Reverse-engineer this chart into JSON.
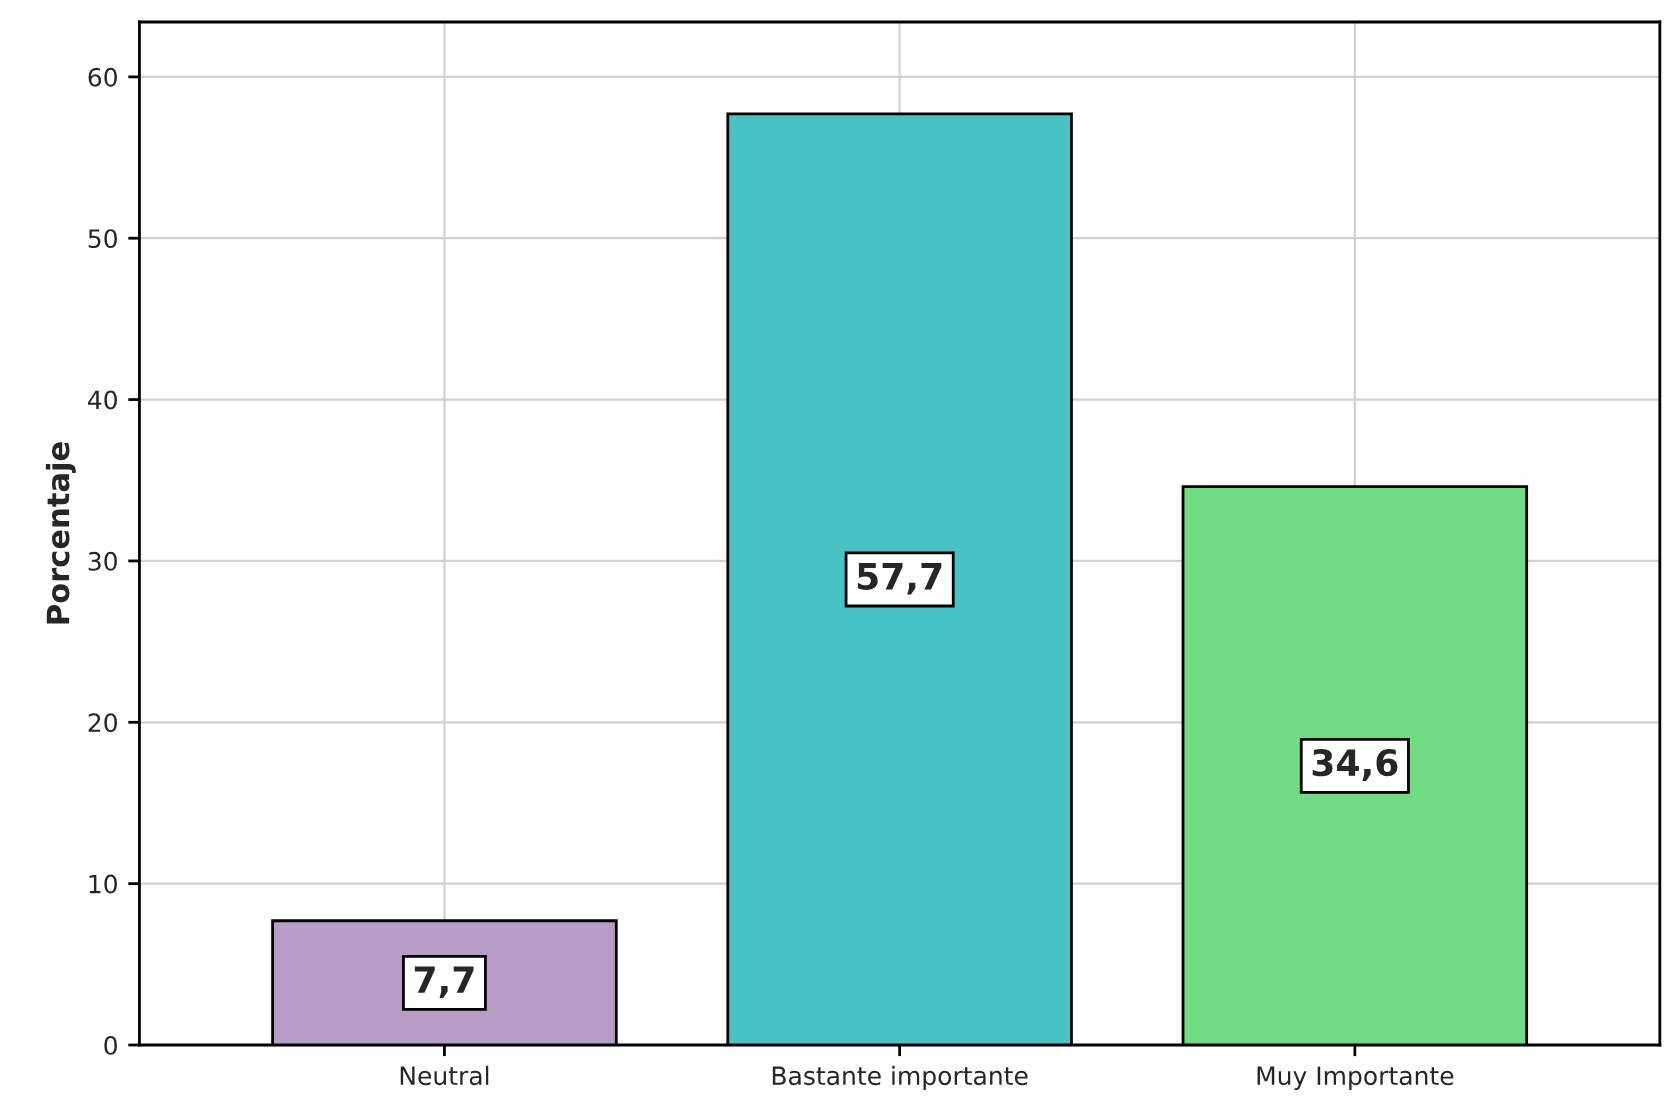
{
  "chart_data": {
    "type": "bar",
    "ylabel": "Porcentaje",
    "categories": [
      "Neutral",
      "Bastante importante",
      "Muy Importante"
    ],
    "values": [
      7.7,
      57.7,
      34.6
    ],
    "value_labels": [
      "7,7",
      "57,7",
      "34,6"
    ],
    "colors": [
      "#b79cc8",
      "#48c2c5",
      "#70db82"
    ],
    "ylim": [
      0,
      63.4
    ],
    "yticks": [
      0,
      10,
      20,
      30,
      40,
      50,
      60
    ],
    "grid": true
  }
}
